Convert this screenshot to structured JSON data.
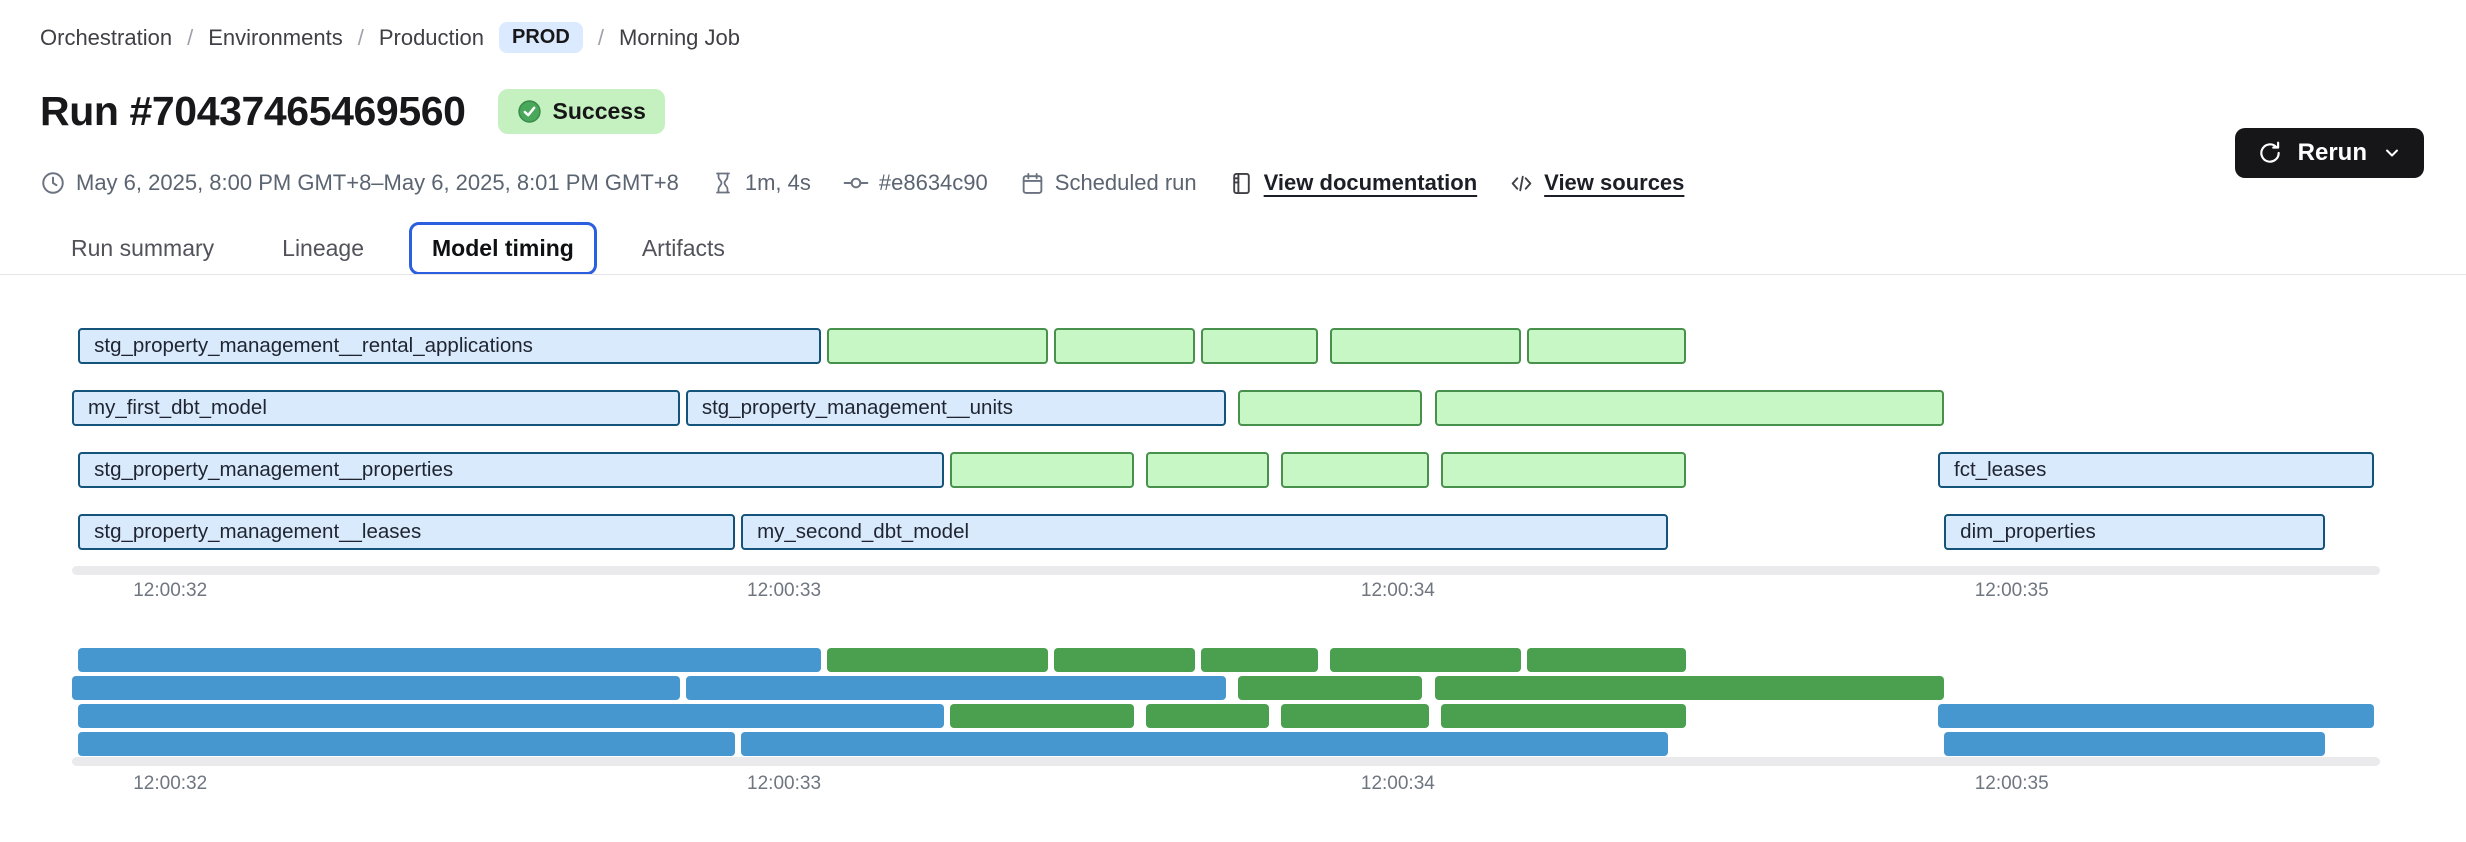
{
  "breadcrumb": {
    "separator": "/",
    "items": [
      "Orchestration",
      "Environments",
      "Production",
      "Morning Job"
    ],
    "env_badge": "PROD"
  },
  "header": {
    "title": "Run #70437465469560",
    "status": "Success",
    "status_icon": "check-circle-icon",
    "rerun_label": "Rerun",
    "rerun_icon": "refresh-icon",
    "rerun_caret": "chevron-down-icon"
  },
  "meta_items": [
    {
      "icon": "clock-icon",
      "text": "May 6, 2025, 8:00 PM GMT+8–May 6, 2025, 8:01 PM GMT+8",
      "link": false
    },
    {
      "icon": "hourglass-icon",
      "text": "1m, 4s",
      "link": false
    },
    {
      "icon": "commit-icon",
      "text": "#e8634c90",
      "link": false
    },
    {
      "icon": "calendar-icon",
      "text": "Scheduled run",
      "link": false
    },
    {
      "icon": "document-icon",
      "text": "View documentation",
      "link": true
    },
    {
      "icon": "code-icon",
      "text": "View sources",
      "link": true
    }
  ],
  "tabs": [
    {
      "label": "Run summary",
      "active": false
    },
    {
      "label": "Lineage",
      "active": false
    },
    {
      "label": "Model timing",
      "active": true
    },
    {
      "label": "Artifacts",
      "active": false
    }
  ],
  "colors": {
    "accent_blue": "#2b5fe0",
    "prod_bg": "#dbeafe",
    "success_bg": "#c5f1c1",
    "success_check": "#49a85a",
    "rerun_bg": "#161618",
    "bar_blue_fill": "#d8eafc",
    "bar_blue_border": "#15547a",
    "bar_green_fill": "#c8f7c6",
    "bar_green_border": "#47914c",
    "mini_blue": "#4697d0",
    "mini_green": "#4ba04f"
  },
  "chart_data": {
    "type": "gantt",
    "title": "Model timing",
    "time_axis": {
      "tick_labels": [
        "12:00:32",
        "12:00:33",
        "12:00:34",
        "12:00:35"
      ],
      "tick_times": [
        32,
        33,
        34,
        35
      ],
      "domain": [
        31.84,
        35.6
      ]
    },
    "rows": [
      [
        {
          "label": "stg_property_management__rental_applications",
          "color": "blue",
          "start": 31.85,
          "end": 33.06
        },
        {
          "color": "green",
          "start": 33.07,
          "end": 33.43
        },
        {
          "color": "green",
          "start": 33.44,
          "end": 33.67
        },
        {
          "color": "green",
          "start": 33.68,
          "end": 33.87
        },
        {
          "color": "green",
          "start": 33.89,
          "end": 34.2
        },
        {
          "color": "green",
          "start": 34.21,
          "end": 34.47
        }
      ],
      [
        {
          "label": "my_first_dbt_model",
          "color": "blue",
          "start": 31.84,
          "end": 32.83
        },
        {
          "label": "stg_property_management__units",
          "color": "blue",
          "start": 32.84,
          "end": 33.72
        },
        {
          "color": "green",
          "start": 33.74,
          "end": 34.04
        },
        {
          "color": "green",
          "start": 34.06,
          "end": 34.89
        }
      ],
      [
        {
          "label": "stg_property_management__properties",
          "color": "blue",
          "start": 31.85,
          "end": 33.26
        },
        {
          "color": "green",
          "start": 33.27,
          "end": 33.57
        },
        {
          "color": "green",
          "start": 33.59,
          "end": 33.79
        },
        {
          "color": "green",
          "start": 33.81,
          "end": 34.05
        },
        {
          "color": "green",
          "start": 34.07,
          "end": 34.47
        },
        {
          "label": "fct_leases",
          "color": "blue",
          "start": 34.88,
          "end": 35.59
        }
      ],
      [
        {
          "label": "stg_property_management__leases",
          "color": "blue",
          "start": 31.85,
          "end": 32.92
        },
        {
          "label": "my_second_dbt_model",
          "color": "blue",
          "start": 32.93,
          "end": 34.44
        },
        {
          "label": "dim_properties",
          "color": "blue",
          "start": 34.89,
          "end": 35.51
        }
      ]
    ]
  }
}
